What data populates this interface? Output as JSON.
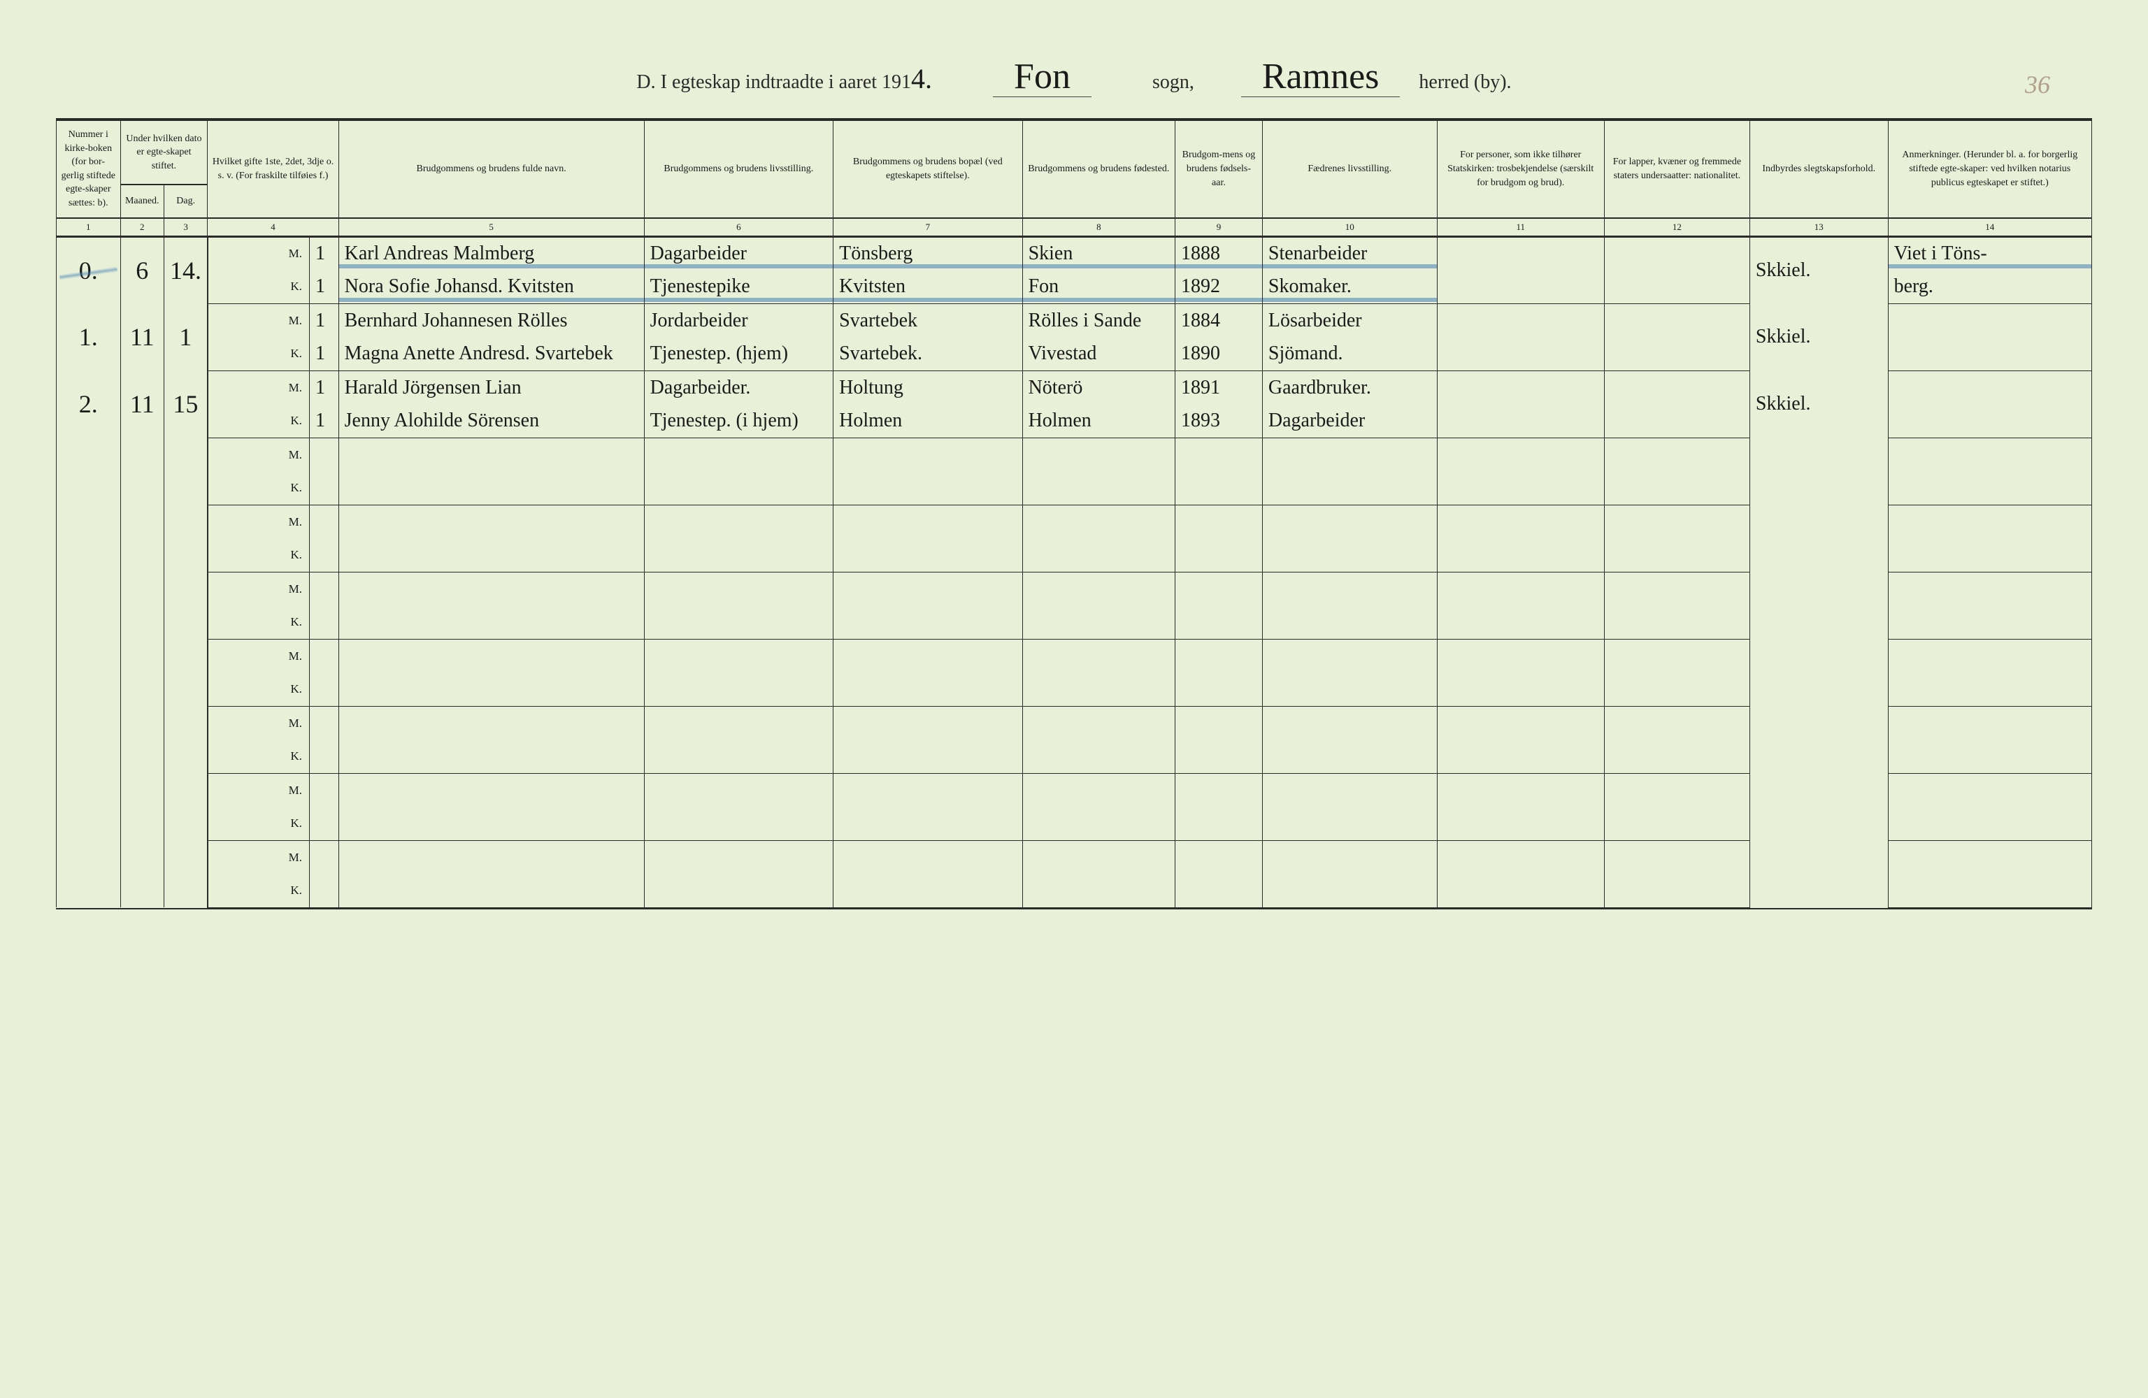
{
  "page_number": "36",
  "header": {
    "prefix": "D.   I egteskap indtraadte i aaret 191",
    "year_suffix": "4.",
    "sogn_label": "sogn,",
    "sogn_value": "Fon",
    "herred_label": "herred (by).",
    "herred_value": "Ramnes"
  },
  "colors": {
    "paper": "#e8f0d8",
    "ink": "#1a1a1a",
    "rule": "#2a2a2a",
    "blue_pencil": "rgba(70,130,180,0.55)",
    "faded": "#b0a088"
  },
  "columns": [
    {
      "num": "1",
      "label": "Nummer i kirke-boken (for bor-gerlig stiftede egte-skaper sættes: b)."
    },
    {
      "num": "2",
      "label": "Maaned."
    },
    {
      "num": "3",
      "label": "Dag."
    },
    {
      "num": "4",
      "label": "Hvilket gifte 1ste, 2det, 3dje o. s. v. (For fraskilte tilføies f.)"
    },
    {
      "num": "5",
      "label": "Brudgommens og brudens fulde navn."
    },
    {
      "num": "6",
      "label": "Brudgommens og brudens livsstilling."
    },
    {
      "num": "7",
      "label": "Brudgommens og brudens bopæl (ved egteskapets stiftelse)."
    },
    {
      "num": "8",
      "label": "Brudgommens og brudens fødested."
    },
    {
      "num": "9",
      "label": "Brudgom-mens og brudens fødsels-aar."
    },
    {
      "num": "10",
      "label": "Fædrenes livsstilling."
    },
    {
      "num": "11",
      "label": "For personer, som ikke tilhører Statskirken: trosbekjendelse (særskilt for brudgom og brud)."
    },
    {
      "num": "12",
      "label": "For lapper, kvæner og fremmede staters undersaatter: nationalitet."
    },
    {
      "num": "13",
      "label": "Indbyrdes slegtskapsforhold."
    },
    {
      "num": "14",
      "label": "Anmerkninger. (Herunder bl. a. for borgerlig stiftede egte-skaper: ved hvilken notarius publicus egteskapet er stiftet.)"
    }
  ],
  "date_header": "Under hvilken dato er egte-skapet stiftet.",
  "rows": [
    {
      "num": "0.",
      "maaned": "6",
      "dag": "14.",
      "struck": true,
      "m": {
        "gifte": "1",
        "navn": "Karl Andreas Malmberg",
        "stilling": "Dagarbeider",
        "bopael": "Tönsberg",
        "fodested": "Skien",
        "aar": "1888",
        "faedre": "Stenarbeider",
        "c11": "",
        "c12": "",
        "c13": "Skkiel.",
        "c14": "Viet i Töns-"
      },
      "k": {
        "gifte": "1",
        "navn": "Nora Sofie Johansd. Kvitsten",
        "stilling": "Tjenestepike",
        "bopael": "Kvitsten",
        "fodested": "Fon",
        "aar": "1892",
        "faedre": "Skomaker.",
        "c11": "",
        "c12": "",
        "c13": "",
        "c14": "berg."
      }
    },
    {
      "num": "1.",
      "maaned": "11",
      "dag": "1",
      "m": {
        "gifte": "1",
        "navn": "Bernhard Johannesen Rölles",
        "stilling": "Jordarbeider",
        "bopael": "Svartebek",
        "fodested": "Rölles i Sande",
        "aar": "1884",
        "faedre": "Lösarbeider",
        "c11": "",
        "c12": "",
        "c13": "Skkiel.",
        "c14": ""
      },
      "k": {
        "gifte": "1",
        "navn": "Magna Anette Andresd. Svartebek",
        "stilling": "Tjenestep. (hjem)",
        "bopael": "Svartebek.",
        "fodested": "Vivestad",
        "aar": "1890",
        "faedre": "Sjömand.",
        "c11": "",
        "c12": "",
        "c13": "",
        "c14": ""
      }
    },
    {
      "num": "2.",
      "maaned": "11",
      "dag": "15",
      "m": {
        "gifte": "1",
        "navn": "Harald Jörgensen Lian",
        "stilling": "Dagarbeider.",
        "bopael": "Holtung",
        "fodested": "Nöterö",
        "aar": "1891",
        "faedre": "Gaardbruker.",
        "c11": "",
        "c12": "",
        "c13": "Skkiel.",
        "c14": ""
      },
      "k": {
        "gifte": "1",
        "navn": "Jenny Alohilde Sörensen",
        "stilling": "Tjenestep. (i hjem)",
        "bopael": "Holmen",
        "fodested": "Holmen",
        "aar": "1893",
        "faedre": "Dagarbeider",
        "c11": "",
        "c12": "",
        "c13": "",
        "c14": ""
      }
    }
  ],
  "empty_pairs": 7,
  "mk_labels": {
    "m": "M.",
    "k": "K."
  }
}
